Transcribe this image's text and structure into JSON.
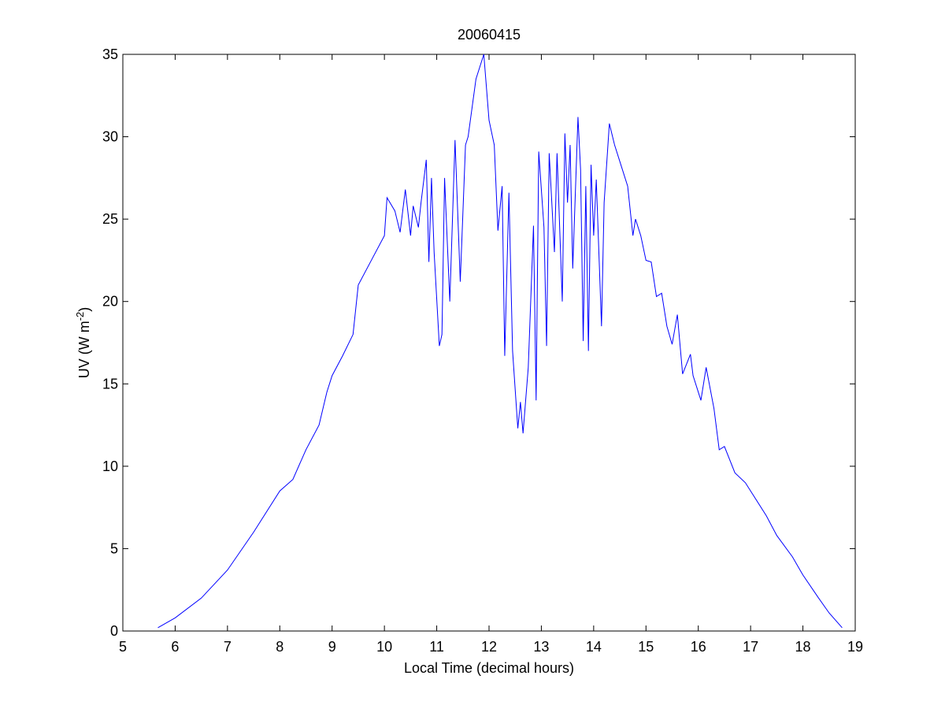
{
  "chart_data": {
    "type": "line",
    "title": "20060415",
    "xlabel": "Local Time (decimal hours)",
    "ylabel": {
      "text": "UV (W m",
      "sup": "-2",
      "end": ")"
    },
    "xlim": [
      5,
      19
    ],
    "xticks": [
      5,
      6,
      7,
      8,
      9,
      10,
      11,
      12,
      13,
      14,
      15,
      16,
      17,
      18,
      19
    ],
    "ylim": [
      0,
      35
    ],
    "yticks": [
      0,
      5,
      10,
      15,
      20,
      25,
      30,
      35
    ],
    "series": [
      {
        "color": "#0000ff",
        "x": [
          5.67,
          6,
          6.5,
          7,
          7.5,
          8,
          8.25,
          8.5,
          8.75,
          8.9,
          9,
          9.2,
          9.4,
          9.5,
          9.75,
          10,
          10.05,
          10.2,
          10.3,
          10.4,
          10.5,
          10.55,
          10.65,
          10.7,
          10.8,
          10.85,
          10.9,
          10.95,
          11.05,
          11.1,
          11.15,
          11.25,
          11.35,
          11.45,
          11.55,
          11.6,
          11.75,
          11.9,
          12,
          12.1,
          12.17,
          12.25,
          12.3,
          12.38,
          12.45,
          12.55,
          12.6,
          12.65,
          12.75,
          12.85,
          12.9,
          12.95,
          13.05,
          13.1,
          13.15,
          13.25,
          13.3,
          13.4,
          13.45,
          13.5,
          13.55,
          13.6,
          13.7,
          13.75,
          13.8,
          13.85,
          13.9,
          13.95,
          14,
          14.05,
          14.15,
          14.2,
          14.3,
          14.4,
          14.5,
          14.65,
          14.75,
          14.8,
          14.9,
          15,
          15.1,
          15.2,
          15.3,
          15.4,
          15.5,
          15.6,
          15.7,
          15.85,
          15.9,
          16.05,
          16.15,
          16.3,
          16.4,
          16.5,
          16.7,
          16.9,
          17,
          17.3,
          17.5,
          17.8,
          18,
          18.3,
          18.5,
          18.75
        ],
        "values": [
          0.2,
          0.8,
          2.0,
          3.7,
          6.0,
          8.5,
          9.2,
          11.0,
          12.5,
          14.5,
          15.5,
          16.7,
          18,
          21,
          22.5,
          24,
          26.3,
          25.5,
          24.2,
          26.8,
          24,
          25.8,
          24.5,
          26,
          28.6,
          22.4,
          27.5,
          23,
          17.3,
          18,
          27.5,
          20,
          29.8,
          21.2,
          29.5,
          30,
          33.5,
          35,
          31,
          29.5,
          24.3,
          27,
          16.7,
          26.6,
          17,
          12.3,
          13.9,
          12,
          16,
          24.6,
          14,
          29.1,
          24.5,
          17.3,
          29,
          23,
          29,
          20,
          30.2,
          26,
          29.5,
          22,
          31.2,
          28,
          17.6,
          27,
          17,
          28.3,
          24,
          27.4,
          18.5,
          26,
          30.8,
          29.5,
          28.5,
          27,
          24,
          25,
          24,
          22.5,
          22.4,
          20.3,
          20.5,
          18.5,
          17.4,
          19.2,
          15.6,
          16.8,
          15.5,
          14,
          16,
          13.5,
          11.0,
          11.2,
          9.6,
          9.0,
          8.5,
          7,
          5.8,
          4.5,
          3.4,
          2.0,
          1.1,
          0.2
        ]
      }
    ]
  }
}
